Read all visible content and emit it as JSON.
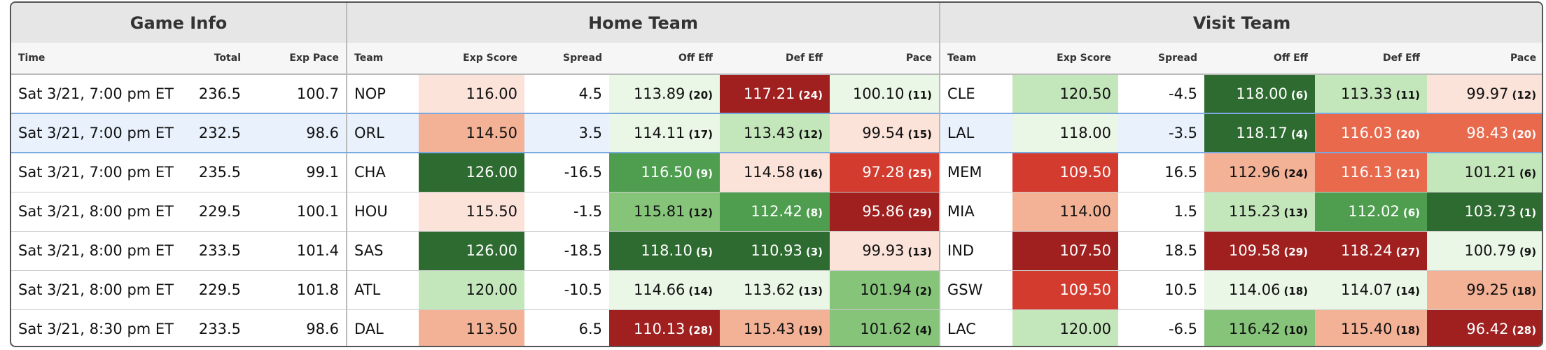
{
  "header": {
    "groups": [
      "Game Info",
      "Home Team",
      "Visit Team"
    ],
    "columns": [
      "Time",
      "Total",
      "Exp Pace",
      "Team",
      "Exp Score",
      "Spread",
      "Off Eff",
      "Def Eff",
      "Pace",
      "Team",
      "Exp Score",
      "Spread",
      "Off Eff",
      "Def Eff",
      "Pace"
    ]
  },
  "table": {
    "highlight_row": 1,
    "rows": [
      [
        "Sat 3/21, 7:00 pm ET",
        "236.5",
        "100.7",
        "NOP",
        {
          "text": "116.00",
          "color": "#fbe3da"
        },
        "4.5",
        {
          "text": "113.89",
          "rank": "(20)",
          "color": "#eaf6e6"
        },
        {
          "text": "117.21",
          "rank": "(24)",
          "color": "#a01f1f"
        },
        {
          "text": "100.10",
          "rank": "(11)",
          "color": "#eaf6e6"
        },
        "CLE",
        {
          "text": "120.50",
          "color": "#c4e6bb"
        },
        "-4.5",
        {
          "text": "118.00",
          "rank": "(6)",
          "color": "#2e6b30"
        },
        {
          "text": "113.33",
          "rank": "(11)",
          "color": "#c4e6bb"
        },
        {
          "text": "99.97",
          "rank": "(12)",
          "color": "#fbe3da"
        }
      ],
      [
        "Sat 3/21, 7:00 pm ET",
        "232.5",
        "98.6",
        "ORL",
        {
          "text": "114.50",
          "color": "#f3b196"
        },
        "3.5",
        {
          "text": "114.11",
          "rank": "(17)",
          "color": "#eaf6e6"
        },
        {
          "text": "113.43",
          "rank": "(12)",
          "color": "#c4e6bb"
        },
        {
          "text": "99.54",
          "rank": "(15)",
          "color": "#fbe3da"
        },
        "LAL",
        {
          "text": "118.00",
          "color": "#eaf6e6"
        },
        "-3.5",
        {
          "text": "118.17",
          "rank": "(4)",
          "color": "#2e6b30"
        },
        {
          "text": "116.03",
          "rank": "(20)",
          "color": "#e8694c"
        },
        {
          "text": "98.43",
          "rank": "(20)",
          "color": "#e8694c"
        }
      ],
      [
        "Sat 3/21, 7:00 pm ET",
        "235.5",
        "99.1",
        "CHA",
        {
          "text": "126.00",
          "color": "#2e6b30"
        },
        "-16.5",
        {
          "text": "116.50",
          "rank": "(9)",
          "color": "#4f9e50"
        },
        {
          "text": "114.58",
          "rank": "(16)",
          "color": "#fbe3da"
        },
        {
          "text": "97.28",
          "rank": "(25)",
          "color": "#d43b2f"
        },
        "MEM",
        {
          "text": "109.50",
          "color": "#d43b2f"
        },
        "16.5",
        {
          "text": "112.96",
          "rank": "(24)",
          "color": "#f3b196"
        },
        {
          "text": "116.13",
          "rank": "(21)",
          "color": "#e8694c"
        },
        {
          "text": "101.21",
          "rank": "(6)",
          "color": "#c4e6bb"
        }
      ],
      [
        "Sat 3/21, 8:00 pm ET",
        "229.5",
        "100.1",
        "HOU",
        {
          "text": "115.50",
          "color": "#fbe3da"
        },
        "-1.5",
        {
          "text": "115.81",
          "rank": "(12)",
          "color": "#86c47a"
        },
        {
          "text": "112.42",
          "rank": "(8)",
          "color": "#4f9e50"
        },
        {
          "text": "95.86",
          "rank": "(29)",
          "color": "#a01f1f"
        },
        "MIA",
        {
          "text": "114.00",
          "color": "#f3b196"
        },
        "1.5",
        {
          "text": "115.23",
          "rank": "(13)",
          "color": "#c4e6bb"
        },
        {
          "text": "112.02",
          "rank": "(6)",
          "color": "#4f9e50"
        },
        {
          "text": "103.73",
          "rank": "(1)",
          "color": "#2e6b30"
        }
      ],
      [
        "Sat 3/21, 8:00 pm ET",
        "233.5",
        "101.4",
        "SAS",
        {
          "text": "126.00",
          "color": "#2e6b30"
        },
        "-18.5",
        {
          "text": "118.10",
          "rank": "(5)",
          "color": "#2e6b30"
        },
        {
          "text": "110.93",
          "rank": "(3)",
          "color": "#2e6b30"
        },
        {
          "text": "99.93",
          "rank": "(13)",
          "color": "#fbe3da"
        },
        "IND",
        {
          "text": "107.50",
          "color": "#a01f1f"
        },
        "18.5",
        {
          "text": "109.58",
          "rank": "(29)",
          "color": "#a01f1f"
        },
        {
          "text": "118.24",
          "rank": "(27)",
          "color": "#a01f1f"
        },
        {
          "text": "100.79",
          "rank": "(9)",
          "color": "#eaf6e6"
        }
      ],
      [
        "Sat 3/21, 8:00 pm ET",
        "229.5",
        "101.8",
        "ATL",
        {
          "text": "120.00",
          "color": "#c4e6bb"
        },
        "-10.5",
        {
          "text": "114.66",
          "rank": "(14)",
          "color": "#eaf6e6"
        },
        {
          "text": "113.62",
          "rank": "(13)",
          "color": "#eaf6e6"
        },
        {
          "text": "101.94",
          "rank": "(2)",
          "color": "#86c47a"
        },
        "GSW",
        {
          "text": "109.50",
          "color": "#d43b2f"
        },
        "10.5",
        {
          "text": "114.06",
          "rank": "(18)",
          "color": "#eaf6e6"
        },
        {
          "text": "114.07",
          "rank": "(14)",
          "color": "#eaf6e6"
        },
        {
          "text": "99.25",
          "rank": "(18)",
          "color": "#f3b196"
        }
      ],
      [
        "Sat 3/21, 8:30 pm ET",
        "233.5",
        "98.6",
        "DAL",
        {
          "text": "113.50",
          "color": "#f3b196"
        },
        "6.5",
        {
          "text": "110.13",
          "rank": "(28)",
          "color": "#a01f1f"
        },
        {
          "text": "115.43",
          "rank": "(19)",
          "color": "#f3b196"
        },
        {
          "text": "101.62",
          "rank": "(4)",
          "color": "#86c47a"
        },
        "LAC",
        {
          "text": "120.00",
          "color": "#c4e6bb"
        },
        "-6.5",
        {
          "text": "116.42",
          "rank": "(10)",
          "color": "#86c47a"
        },
        {
          "text": "115.40",
          "rank": "(18)",
          "color": "#f3b196"
        },
        {
          "text": "96.42",
          "rank": "(28)",
          "color": "#a01f1f"
        }
      ]
    ]
  }
}
